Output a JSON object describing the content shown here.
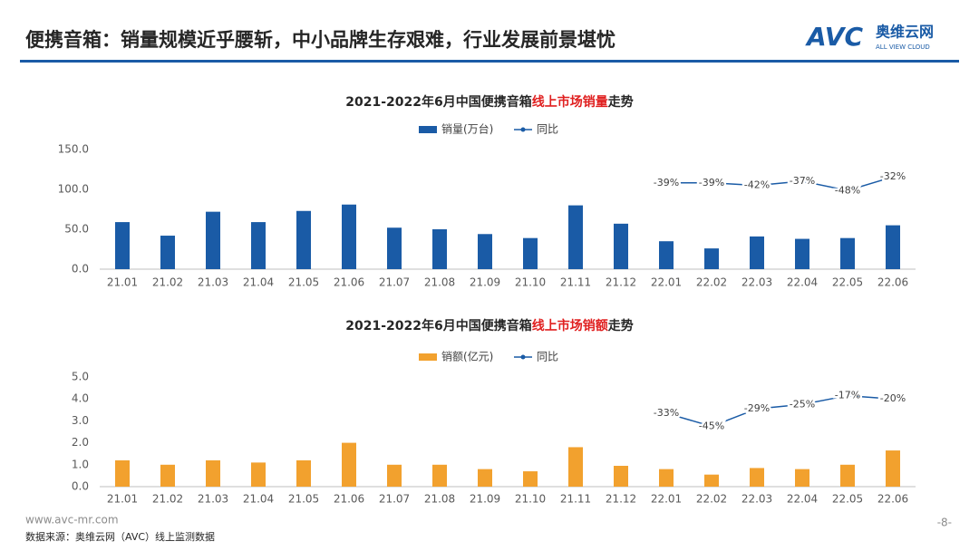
{
  "header": {
    "title": "便携音箱：销量规模近乎腰斩，中小品牌生存艰难，行业发展前景堪忧",
    "logo": {
      "mark": "AVC",
      "name": "奥维云网",
      "tagline": "ALL VIEW CLOUD"
    }
  },
  "chart_data": [
    {
      "type": "bar",
      "title": [
        "2021-2022年6月中国便携音箱",
        "线上市场销量",
        "走势"
      ],
      "categories": [
        "21.01",
        "21.02",
        "21.03",
        "21.04",
        "21.05",
        "21.06",
        "21.07",
        "21.08",
        "21.09",
        "21.10",
        "21.11",
        "21.12",
        "22.01",
        "22.02",
        "22.03",
        "22.04",
        "22.05",
        "22.06"
      ],
      "series": [
        {
          "name": "销量(万台)",
          "type": "bar",
          "color": "#1a5ba6",
          "values": [
            59,
            42,
            72,
            59,
            73,
            81,
            52,
            50,
            44,
            39,
            80,
            57,
            35,
            26,
            41,
            38,
            39,
            55
          ]
        },
        {
          "name": "同比",
          "type": "line",
          "axis": "y2",
          "color": "#1a5ba6",
          "values": [
            null,
            null,
            null,
            null,
            null,
            null,
            null,
            null,
            null,
            null,
            null,
            null,
            -39,
            -39,
            -42,
            -37,
            -48,
            -32
          ],
          "value_labels": [
            null,
            null,
            null,
            null,
            null,
            null,
            null,
            null,
            null,
            null,
            null,
            null,
            "-39%",
            "-39%",
            "-42%",
            "-37%",
            "-48%",
            "-32%"
          ]
        }
      ],
      "ylim": [
        0,
        150
      ],
      "yticks": [
        {
          "value": 0,
          "label": "0.0"
        },
        {
          "value": 50,
          "label": "50.0"
        },
        {
          "value": 100,
          "label": "100.0"
        },
        {
          "value": 150,
          "label": "150.0"
        }
      ],
      "y2lim": [
        -140,
        0
      ],
      "grid": false,
      "legend": "top"
    },
    {
      "type": "bar",
      "title": [
        "2021-2022年6月中国便携音箱",
        "线上市场销额",
        "走势"
      ],
      "categories": [
        "21.01",
        "21.02",
        "21.03",
        "21.04",
        "21.05",
        "21.06",
        "21.07",
        "21.08",
        "21.09",
        "21.10",
        "21.11",
        "21.12",
        "22.01",
        "22.02",
        "22.03",
        "22.04",
        "22.05",
        "22.06"
      ],
      "series": [
        {
          "name": "销额(亿元)",
          "type": "bar",
          "color": "#f2a12e",
          "values": [
            1.2,
            1.0,
            1.2,
            1.1,
            1.2,
            2.0,
            1.0,
            1.0,
            0.8,
            0.7,
            1.8,
            0.95,
            0.8,
            0.55,
            0.85,
            0.8,
            1.0,
            1.65
          ]
        },
        {
          "name": "同比",
          "type": "line",
          "axis": "y2",
          "color": "#1a5ba6",
          "values": [
            null,
            null,
            null,
            null,
            null,
            null,
            null,
            null,
            null,
            null,
            null,
            null,
            -33,
            -45,
            -29,
            -25,
            -17,
            -20
          ],
          "value_labels": [
            null,
            null,
            null,
            null,
            null,
            null,
            null,
            null,
            null,
            null,
            null,
            null,
            "-33%",
            "-45%",
            "-29%",
            "-25%",
            "-17%",
            "-20%"
          ]
        }
      ],
      "ylim": [
        0,
        5
      ],
      "yticks": [
        {
          "value": 0,
          "label": "0.0"
        },
        {
          "value": 1,
          "label": "1.0"
        },
        {
          "value": 2,
          "label": "2.0"
        },
        {
          "value": 3,
          "label": "3.0"
        },
        {
          "value": 4,
          "label": "4.0"
        },
        {
          "value": 5,
          "label": "5.0"
        }
      ],
      "y2lim": [
        -100,
        0
      ],
      "grid": false,
      "legend": "top"
    }
  ],
  "footer": {
    "url": "www.avc-mr.com",
    "source": "数据来源：奥维云网（AVC）线上监测数据",
    "page": "-8-"
  }
}
